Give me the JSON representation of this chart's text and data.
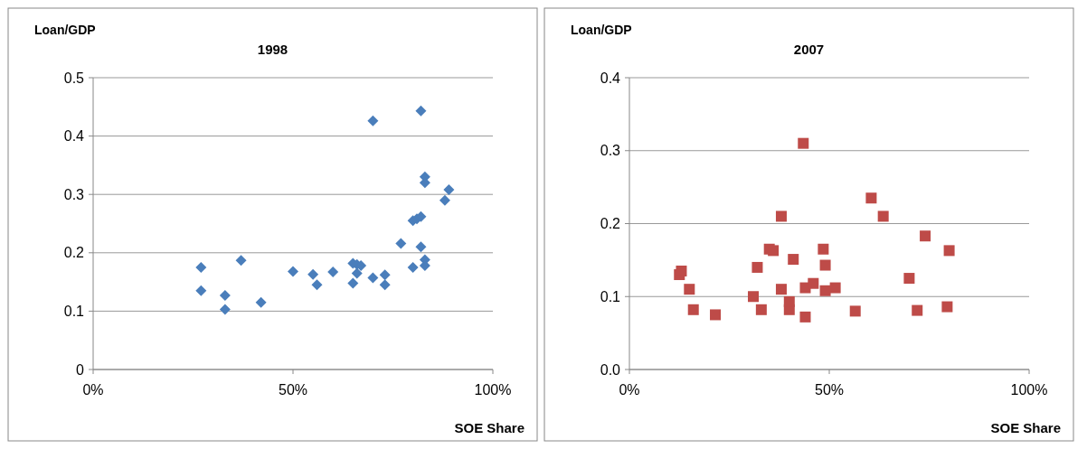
{
  "chart_data": [
    {
      "type": "scatter",
      "title": "1998",
      "ylabel": "Loan/GDP",
      "xlabel": "SOE Share",
      "marker": "diamond",
      "grid": "y",
      "xlim": [
        0,
        1
      ],
      "xticks": [
        {
          "value": 0,
          "label": "0%"
        },
        {
          "value": 0.5,
          "label": "50%"
        },
        {
          "value": 1,
          "label": "100%"
        }
      ],
      "ylim": [
        0,
        0.5
      ],
      "yticks": [
        {
          "value": 0,
          "label": "0"
        },
        0.1,
        0.2,
        0.3,
        0.4,
        0.5
      ],
      "series": [
        {
          "color": "#4a7ebb",
          "x": [
            0.27,
            0.27,
            0.33,
            0.33,
            0.37,
            0.42,
            0.5,
            0.55,
            0.56,
            0.6,
            0.65,
            0.66,
            0.67,
            0.66,
            0.65,
            0.7,
            0.73,
            0.73,
            0.7,
            0.82,
            0.77,
            0.8,
            0.8,
            0.81,
            0.82,
            0.82,
            0.83,
            0.83,
            0.83,
            0.83,
            0.89,
            0.88
          ],
          "values": [
            0.175,
            0.135,
            0.127,
            0.103,
            0.187,
            0.115,
            0.168,
            0.163,
            0.145,
            0.167,
            0.182,
            0.18,
            0.178,
            0.165,
            0.148,
            0.157,
            0.145,
            0.162,
            0.426,
            0.443,
            0.216,
            0.175,
            0.255,
            0.258,
            0.262,
            0.21,
            0.33,
            0.32,
            0.188,
            0.178,
            0.308,
            0.29
          ]
        }
      ]
    },
    {
      "type": "scatter",
      "title": "2007",
      "ylabel": "Loan/GDP",
      "xlabel": "SOE Share",
      "marker": "square",
      "grid": "y",
      "xlim": [
        0,
        1
      ],
      "xticks": [
        {
          "value": 0,
          "label": "0%"
        },
        {
          "value": 0.5,
          "label": "50%"
        },
        {
          "value": 1,
          "label": "100%"
        }
      ],
      "ylim": [
        0,
        0.4
      ],
      "yticks": [
        {
          "value": 0,
          "label": "0.0"
        },
        0.1,
        0.2,
        0.3,
        0.4
      ],
      "series": [
        {
          "color": "#be4b48",
          "x": [
            0.125,
            0.13,
            0.15,
            0.16,
            0.215,
            0.31,
            0.32,
            0.33,
            0.35,
            0.36,
            0.38,
            0.38,
            0.4,
            0.4,
            0.41,
            0.435,
            0.44,
            0.44,
            0.46,
            0.485,
            0.49,
            0.49,
            0.515,
            0.565,
            0.605,
            0.635,
            0.7,
            0.72,
            0.74,
            0.8,
            0.795
          ],
          "values": [
            0.13,
            0.135,
            0.11,
            0.082,
            0.075,
            0.1,
            0.14,
            0.082,
            0.165,
            0.163,
            0.11,
            0.21,
            0.082,
            0.093,
            0.151,
            0.31,
            0.112,
            0.072,
            0.118,
            0.165,
            0.143,
            0.108,
            0.112,
            0.08,
            0.235,
            0.21,
            0.125,
            0.081,
            0.183,
            0.163,
            0.086
          ]
        }
      ]
    }
  ]
}
